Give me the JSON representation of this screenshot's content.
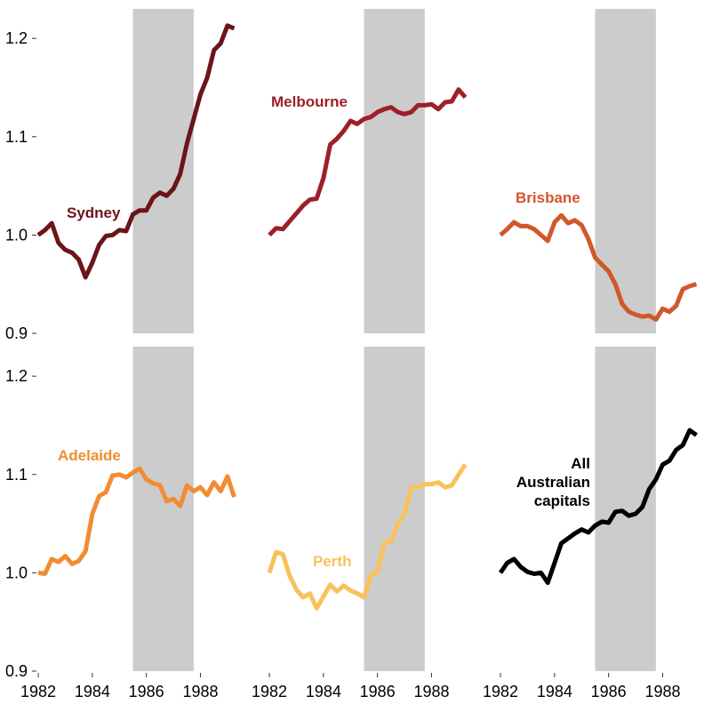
{
  "chart_data": {
    "type": "line",
    "layout": "small-multiples 2x3",
    "x_ticks": [
      1982,
      1984,
      1986,
      1988
    ],
    "xlim": [
      1981.9,
      1989.3
    ],
    "y_ticks": [
      0.9,
      1.0,
      1.1,
      1.2
    ],
    "y_tick_labels": [
      "0.9",
      "1.0",
      "1.1",
      "1.2"
    ],
    "ylim": [
      0.9,
      1.23
    ],
    "grid": false,
    "shaded_period": [
      1985.5,
      1987.75
    ],
    "shaded_color": "#cccccc",
    "panels": [
      {
        "label": "Sydney",
        "color": "#6b1518",
        "x": [
          1982,
          1982.25,
          1982.5,
          1982.75,
          1983,
          1983.25,
          1983.5,
          1983.75,
          1984,
          1984.25,
          1984.5,
          1984.75,
          1985,
          1985.25,
          1985.5,
          1985.75,
          1986,
          1986.25,
          1986.5,
          1986.75,
          1987,
          1987.25,
          1987.5,
          1987.75,
          1988,
          1988.25,
          1988.5,
          1988.75,
          1989,
          1989.25
        ],
        "values": [
          1.0,
          1.005,
          1.012,
          0.992,
          0.985,
          0.982,
          0.975,
          0.957,
          0.972,
          0.99,
          0.999,
          1.0,
          1.005,
          1.004,
          1.021,
          1.025,
          1.025,
          1.038,
          1.043,
          1.04,
          1.047,
          1.062,
          1.093,
          1.118,
          1.143,
          1.16,
          1.188,
          1.195,
          1.213,
          1.21
        ]
      },
      {
        "label": "Melbourne",
        "color": "#9e1f27",
        "x": [
          1982,
          1982.25,
          1982.5,
          1982.75,
          1983,
          1983.25,
          1983.5,
          1983.75,
          1984,
          1984.25,
          1984.5,
          1984.75,
          1985,
          1985.25,
          1985.5,
          1985.75,
          1986,
          1986.25,
          1986.5,
          1986.75,
          1987,
          1987.25,
          1987.5,
          1987.75,
          1988,
          1988.25,
          1988.5,
          1988.75,
          1989,
          1989.25
        ],
        "values": [
          1.0,
          1.007,
          1.006,
          1.014,
          1.022,
          1.03,
          1.036,
          1.037,
          1.058,
          1.092,
          1.098,
          1.106,
          1.116,
          1.113,
          1.118,
          1.12,
          1.125,
          1.128,
          1.13,
          1.125,
          1.123,
          1.125,
          1.132,
          1.132,
          1.133,
          1.128,
          1.135,
          1.136,
          1.148,
          1.14
        ]
      },
      {
        "label": "Brisbane",
        "color": "#d2572b",
        "x": [
          1982,
          1982.25,
          1982.5,
          1982.75,
          1983,
          1983.25,
          1983.5,
          1983.75,
          1984,
          1984.25,
          1984.5,
          1984.75,
          1985,
          1985.25,
          1985.5,
          1985.75,
          1986,
          1986.25,
          1986.5,
          1986.75,
          1987,
          1987.25,
          1987.5,
          1987.75,
          1988,
          1988.25,
          1988.5,
          1988.75,
          1989,
          1989.25
        ],
        "values": [
          1.0,
          1.006,
          1.013,
          1.009,
          1.009,
          1.006,
          1.0,
          0.994,
          1.013,
          1.02,
          1.012,
          1.015,
          1.01,
          0.996,
          0.977,
          0.97,
          0.963,
          0.95,
          0.93,
          0.922,
          0.919,
          0.917,
          0.918,
          0.914,
          0.925,
          0.922,
          0.928,
          0.945,
          0.948,
          0.95
        ]
      },
      {
        "label": "Adelaide",
        "color": "#f28c33",
        "x": [
          1982,
          1982.25,
          1982.5,
          1982.75,
          1983,
          1983.25,
          1983.5,
          1983.75,
          1984,
          1984.25,
          1984.5,
          1984.75,
          1985,
          1985.25,
          1985.5,
          1985.75,
          1986,
          1986.25,
          1986.5,
          1986.75,
          1987,
          1987.25,
          1987.5,
          1987.75,
          1988,
          1988.25,
          1988.5,
          1988.75,
          1989,
          1989.25
        ],
        "values": [
          1.0,
          0.999,
          1.014,
          1.011,
          1.017,
          1.009,
          1.012,
          1.022,
          1.06,
          1.078,
          1.082,
          1.099,
          1.1,
          1.097,
          1.102,
          1.106,
          1.095,
          1.091,
          1.089,
          1.073,
          1.075,
          1.068,
          1.089,
          1.083,
          1.087,
          1.079,
          1.092,
          1.083,
          1.098,
          1.077
        ]
      },
      {
        "label": "Perth",
        "color": "#f9c15a",
        "x": [
          1982,
          1982.25,
          1982.5,
          1982.75,
          1983,
          1983.25,
          1983.5,
          1983.75,
          1984,
          1984.25,
          1984.5,
          1984.75,
          1985,
          1985.25,
          1985.5,
          1985.75,
          1986,
          1986.25,
          1986.5,
          1986.75,
          1987,
          1987.25,
          1987.5,
          1987.75,
          1988,
          1988.25,
          1988.5,
          1988.75,
          1989,
          1989.25
        ],
        "values": [
          1.0,
          1.021,
          1.019,
          0.997,
          0.983,
          0.975,
          0.979,
          0.964,
          0.976,
          0.988,
          0.981,
          0.987,
          0.982,
          0.979,
          0.975,
          0.997,
          1.001,
          1.03,
          1.032,
          1.05,
          1.06,
          1.087,
          1.087,
          1.09,
          1.09,
          1.092,
          1.087,
          1.089,
          1.1,
          1.11
        ]
      },
      {
        "label": "All Australian capitals",
        "label_lines": [
          "All",
          "Australian",
          "capitals"
        ],
        "color": "#000000",
        "x": [
          1982,
          1982.25,
          1982.5,
          1982.75,
          1983,
          1983.25,
          1983.5,
          1983.75,
          1984,
          1984.25,
          1984.5,
          1984.75,
          1985,
          1985.25,
          1985.5,
          1985.75,
          1986,
          1986.25,
          1986.5,
          1986.75,
          1987,
          1987.25,
          1987.5,
          1987.75,
          1988,
          1988.25,
          1988.5,
          1988.75,
          1989,
          1989.25
        ],
        "values": [
          1.0,
          1.01,
          1.014,
          1.006,
          1.001,
          0.999,
          1.0,
          0.99,
          1.01,
          1.03,
          1.035,
          1.04,
          1.044,
          1.041,
          1.048,
          1.052,
          1.051,
          1.062,
          1.063,
          1.058,
          1.06,
          1.067,
          1.085,
          1.095,
          1.11,
          1.114,
          1.125,
          1.13,
          1.145,
          1.14
        ]
      }
    ]
  }
}
